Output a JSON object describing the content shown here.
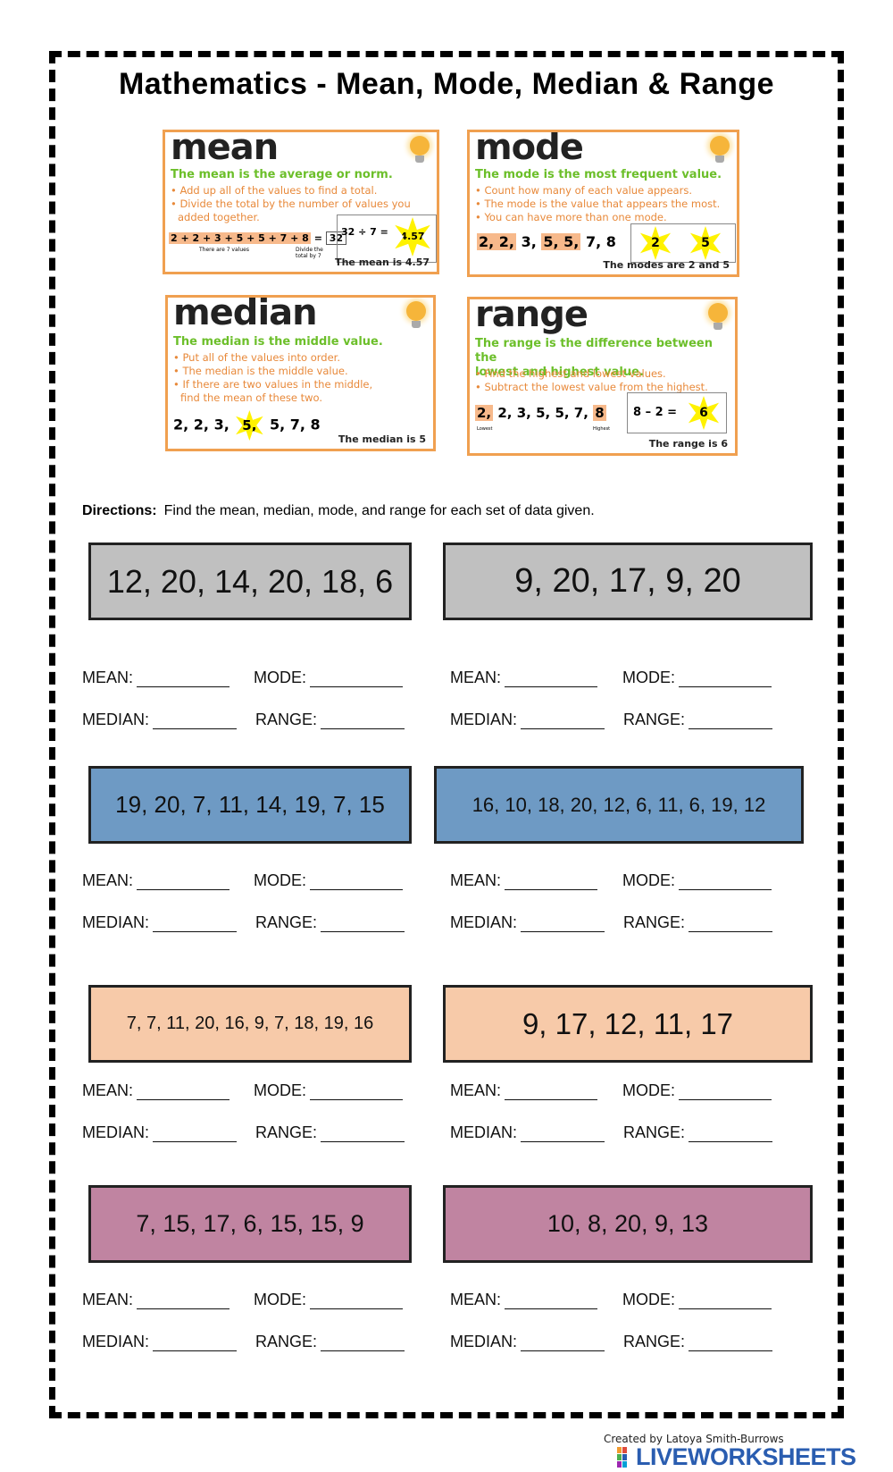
{
  "title": "Mathematics - Mean, Mode, Median & Range",
  "cards": {
    "mean": {
      "word": "mean",
      "lead": "The mean is the average or norm.",
      "points": [
        "• Add up all of the values to find a total.",
        "• Divide the total by the number of values you",
        "  added together."
      ],
      "sum": "2 + 2 + 3 + 5 + 5 + 7 + 8",
      "eq": "=",
      "total": "32",
      "note1": "There are 7 values",
      "note2": "Divide the total by 7",
      "calc": "32 ÷ 7 =",
      "answer": "4.57",
      "result": "The mean is 4.57"
    },
    "mode": {
      "word": "mode",
      "lead": "The mode is the most frequent value.",
      "points": [
        "• Count how many of each value appears.",
        "• The mode is the value that appears the most.",
        "• You can have more than one mode."
      ],
      "seq_a": "2, 2,",
      "seq_b": "3,",
      "seq_c": "5, 5,",
      "seq_d": "7, 8",
      "m1": "2",
      "m2": "5",
      "result": "The modes are 2 and 5"
    },
    "median": {
      "word": "median",
      "lead": "The median is the middle value.",
      "points": [
        "• Put all of the values into order.",
        "• The median is the middle value.",
        "• If there are two values in the middle,",
        "  find the mean of these two."
      ],
      "seq_a": "2, 2, 3,",
      "mid": "5,",
      "seq_b": "5, 7, 8",
      "result": "The median is 5"
    },
    "range": {
      "word": "range",
      "lead1": "The range is the difference between the",
      "lead2": "lowest and highest value.",
      "points": [
        "• Find the highest and lowest values.",
        "• Subtract the lowest value from the highest."
      ],
      "low": "2,",
      "seq": "2, 3, 5, 5, 7,",
      "high": "8",
      "lowest": "Lowest",
      "highest": "Highest",
      "calc": "8 – 2 =",
      "answer": "6",
      "result": "The range is 6"
    }
  },
  "directions": {
    "label": "Directions:",
    "text": "Find the mean, median, mode, and range for each set of data given."
  },
  "labels": {
    "mean": "MEAN:",
    "mode": "MODE:",
    "median": "MEDIAN:",
    "range": "RANGE:"
  },
  "datasets": [
    {
      "text": "12, 20, 14, 20, 18, 6",
      "color": "#c0c0c0"
    },
    {
      "text": "9, 20, 17, 9, 20",
      "color": "#c0c0c0"
    },
    {
      "text": "19, 20, 7, 11, 14, 19, 7, 15",
      "color": "#6e9ac4"
    },
    {
      "text": "16, 10, 18, 20, 12, 6, 11, 6, 19, 12",
      "color": "#6e9ac4"
    },
    {
      "text": "7, 7, 11, 20, 16, 9, 7, 18, 19, 16",
      "color": "#f7caa9"
    },
    {
      "text": "9, 17, 12, 11, 17",
      "color": "#f7caa9"
    },
    {
      "text": "7, 15, 17, 6, 15, 15, 9",
      "color": "#c084a1"
    },
    {
      "text": "10, 8, 20, 9, 13",
      "color": "#c084a1"
    }
  ],
  "footer": {
    "credit": "Created by Latoya Smith-Burrows",
    "logo": "LIVEWORKSHEETS"
  }
}
